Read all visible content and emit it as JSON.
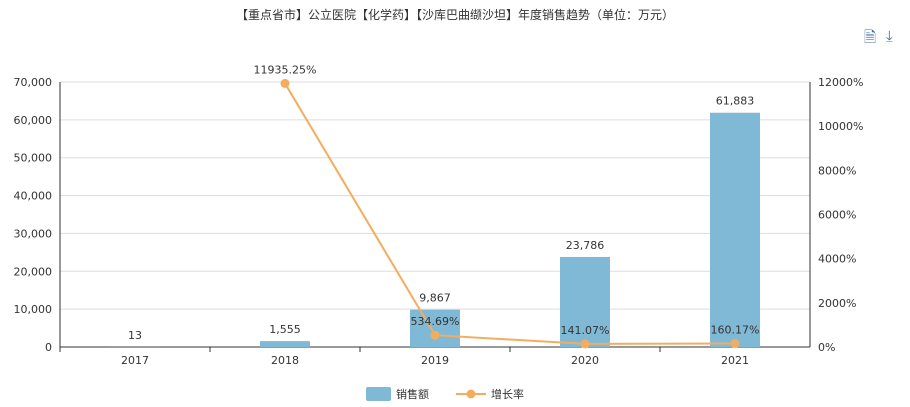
{
  "toolbar": {
    "icons": [
      "document-icon",
      "download-icon"
    ]
  },
  "chart_data": {
    "type": "bar+line",
    "title": "【重点省市】公立医院【化学药】【沙库巴曲缬沙坦】年度销售趋势（单位：万元）",
    "categories": [
      "2017",
      "2018",
      "2019",
      "2020",
      "2021"
    ],
    "series": [
      {
        "name": "销售额",
        "type": "bar",
        "axis": "left",
        "color": "#7fb9d5",
        "values": [
          13,
          1555,
          9867,
          23786,
          61883
        ],
        "labels": [
          "13",
          "1,555",
          "9,867",
          "23,786",
          "61,883"
        ]
      },
      {
        "name": "增长率",
        "type": "line",
        "axis": "right",
        "color": "#f4ad5f",
        "values": [
          null,
          11935.25,
          534.69,
          141.07,
          160.17
        ],
        "labels": [
          "",
          "11935.25%",
          "534.69%",
          "141.07%",
          "160.17%"
        ]
      }
    ],
    "y_left": {
      "min": 0,
      "max": 70000,
      "ticks": [
        "0",
        "10,000",
        "20,000",
        "30,000",
        "40,000",
        "50,000",
        "60,000",
        "70,000"
      ]
    },
    "y_right": {
      "min": 0,
      "max": 12000,
      "ticks": [
        "0%",
        "2000%",
        "4000%",
        "6000%",
        "8000%",
        "10000%",
        "12000%"
      ]
    },
    "grid": true,
    "legend": "bottom-center"
  }
}
